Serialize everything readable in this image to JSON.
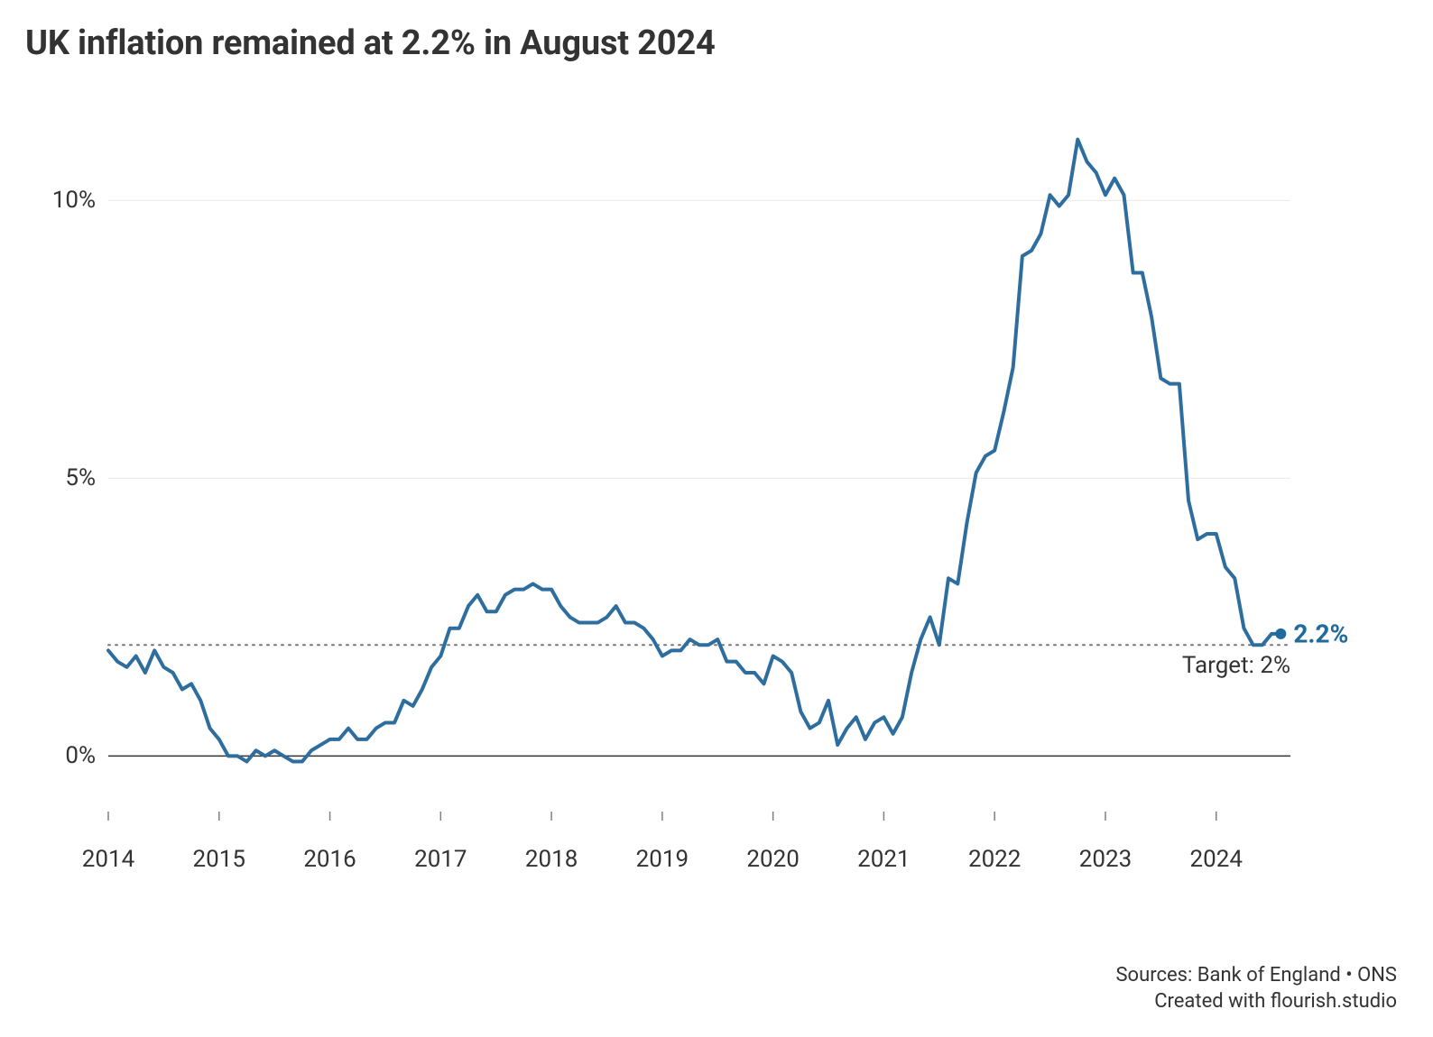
{
  "title": "UK inflation remained at 2.2% in August 2024",
  "footer": {
    "sources": "Sources: Bank of England • ONS",
    "created": "Created with flourish.studio"
  },
  "chart": {
    "type": "line",
    "background_color": "#ffffff",
    "line_color": "#2e6e9e",
    "line_width": 4,
    "grid_color": "#e8e8e8",
    "axis_color": "#808080",
    "zero_line_color": "#333333",
    "target_line_color": "#777777",
    "text_color": "#333333",
    "end_marker_color": "#1f6b9c",
    "end_marker_radius": 6,
    "title_fontsize": 38,
    "label_fontsize": 26,
    "end_label_fontsize": 28,
    "y": {
      "min": -1,
      "max": 11.5,
      "ticks": [
        0,
        5,
        10
      ],
      "tick_labels": [
        "0%",
        "5%",
        "10%"
      ]
    },
    "x": {
      "min": 2014.0,
      "max": 2024.67,
      "ticks": [
        2014,
        2015,
        2016,
        2017,
        2018,
        2019,
        2020,
        2021,
        2022,
        2023,
        2024
      ],
      "tick_labels": [
        "2014",
        "2015",
        "2016",
        "2017",
        "2018",
        "2019",
        "2020",
        "2021",
        "2022",
        "2023",
        "2024"
      ],
      "tick_len": 10
    },
    "target": {
      "value": 2.0,
      "label": "Target: 2%",
      "dash": "2 6"
    },
    "end_label": "2.2%",
    "series": {
      "x": [
        2014.0,
        2014.083,
        2014.167,
        2014.25,
        2014.333,
        2014.417,
        2014.5,
        2014.583,
        2014.667,
        2014.75,
        2014.833,
        2014.917,
        2015.0,
        2015.083,
        2015.167,
        2015.25,
        2015.333,
        2015.417,
        2015.5,
        2015.583,
        2015.667,
        2015.75,
        2015.833,
        2015.917,
        2016.0,
        2016.083,
        2016.167,
        2016.25,
        2016.333,
        2016.417,
        2016.5,
        2016.583,
        2016.667,
        2016.75,
        2016.833,
        2016.917,
        2017.0,
        2017.083,
        2017.167,
        2017.25,
        2017.333,
        2017.417,
        2017.5,
        2017.583,
        2017.667,
        2017.75,
        2017.833,
        2017.917,
        2018.0,
        2018.083,
        2018.167,
        2018.25,
        2018.333,
        2018.417,
        2018.5,
        2018.583,
        2018.667,
        2018.75,
        2018.833,
        2018.917,
        2019.0,
        2019.083,
        2019.167,
        2019.25,
        2019.333,
        2019.417,
        2019.5,
        2019.583,
        2019.667,
        2019.75,
        2019.833,
        2019.917,
        2020.0,
        2020.083,
        2020.167,
        2020.25,
        2020.333,
        2020.417,
        2020.5,
        2020.583,
        2020.667,
        2020.75,
        2020.833,
        2020.917,
        2021.0,
        2021.083,
        2021.167,
        2021.25,
        2021.333,
        2021.417,
        2021.5,
        2021.583,
        2021.667,
        2021.75,
        2021.833,
        2021.917,
        2022.0,
        2022.083,
        2022.167,
        2022.25,
        2022.333,
        2022.417,
        2022.5,
        2022.583,
        2022.667,
        2022.75,
        2022.833,
        2022.917,
        2023.0,
        2023.083,
        2023.167,
        2023.25,
        2023.333,
        2023.417,
        2023.5,
        2023.583,
        2023.667,
        2023.75,
        2023.833,
        2023.917,
        2024.0,
        2024.083,
        2024.167,
        2024.25,
        2024.333,
        2024.417,
        2024.5,
        2024.583
      ],
      "y": [
        1.9,
        1.7,
        1.6,
        1.8,
        1.5,
        1.9,
        1.6,
        1.5,
        1.2,
        1.3,
        1.0,
        0.5,
        0.3,
        0.0,
        0.0,
        -0.1,
        0.1,
        0.0,
        0.1,
        0.0,
        -0.1,
        -0.1,
        0.1,
        0.2,
        0.3,
        0.3,
        0.5,
        0.3,
        0.3,
        0.5,
        0.6,
        0.6,
        1.0,
        0.9,
        1.2,
        1.6,
        1.8,
        2.3,
        2.3,
        2.7,
        2.9,
        2.6,
        2.6,
        2.9,
        3.0,
        3.0,
        3.1,
        3.0,
        3.0,
        2.7,
        2.5,
        2.4,
        2.4,
        2.4,
        2.5,
        2.7,
        2.4,
        2.4,
        2.3,
        2.1,
        1.8,
        1.9,
        1.9,
        2.1,
        2.0,
        2.0,
        2.1,
        1.7,
        1.7,
        1.5,
        1.5,
        1.3,
        1.8,
        1.7,
        1.5,
        0.8,
        0.5,
        0.6,
        1.0,
        0.2,
        0.5,
        0.7,
        0.3,
        0.6,
        0.7,
        0.4,
        0.7,
        1.5,
        2.1,
        2.5,
        2.0,
        3.2,
        3.1,
        4.2,
        5.1,
        5.4,
        5.5,
        6.2,
        7.0,
        9.0,
        9.1,
        9.4,
        10.1,
        9.9,
        10.1,
        11.1,
        10.7,
        10.5,
        10.1,
        10.4,
        10.1,
        8.7,
        8.7,
        7.9,
        6.8,
        6.7,
        6.7,
        4.6,
        3.9,
        4.0,
        4.0,
        3.4,
        3.2,
        2.3,
        2.0,
        2.0,
        2.2,
        2.2
      ]
    }
  }
}
